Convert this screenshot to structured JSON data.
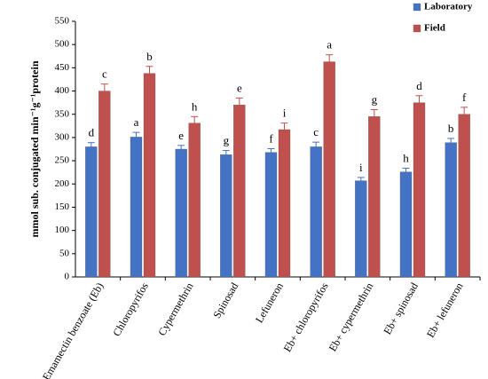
{
  "chart_data": {
    "type": "bar",
    "ylabel": "mmol sub. conjugated min⁻¹g⁻¹protein",
    "ylim": [
      0,
      550
    ],
    "yticks": [
      0,
      50,
      100,
      150,
      200,
      250,
      300,
      350,
      400,
      450,
      500,
      550
    ],
    "categories": [
      "Emamectin benzoate (Eb)",
      "Chloropyrifos",
      "Cypermethrin",
      "Spinosad",
      "Lefuneron",
      "Eb+ chloropyrifos",
      "Eb+ cypermethrin",
      "Eb+ spinosad",
      "Eb+ lefuneron"
    ],
    "series": [
      {
        "name": "Laboratory",
        "color": "#4472C4",
        "values": [
          280,
          301,
          275,
          263,
          268,
          280,
          207,
          226,
          289
        ],
        "errors": [
          9,
          10,
          8,
          9,
          8,
          10,
          7,
          8,
          9
        ],
        "letters": [
          "d",
          "a",
          "e",
          "g",
          "f",
          "c",
          "i",
          "h",
          "b"
        ]
      },
      {
        "name": "Field",
        "color": "#C0504D",
        "values": [
          400,
          438,
          331,
          370,
          317,
          463,
          345,
          375,
          350
        ],
        "errors": [
          15,
          15,
          14,
          15,
          14,
          15,
          15,
          15,
          15
        ],
        "letters": [
          "c",
          "b",
          "h",
          "e",
          "i",
          "a",
          "g",
          "d",
          "f"
        ]
      }
    ],
    "legend_position": "top-right",
    "grid": false
  }
}
